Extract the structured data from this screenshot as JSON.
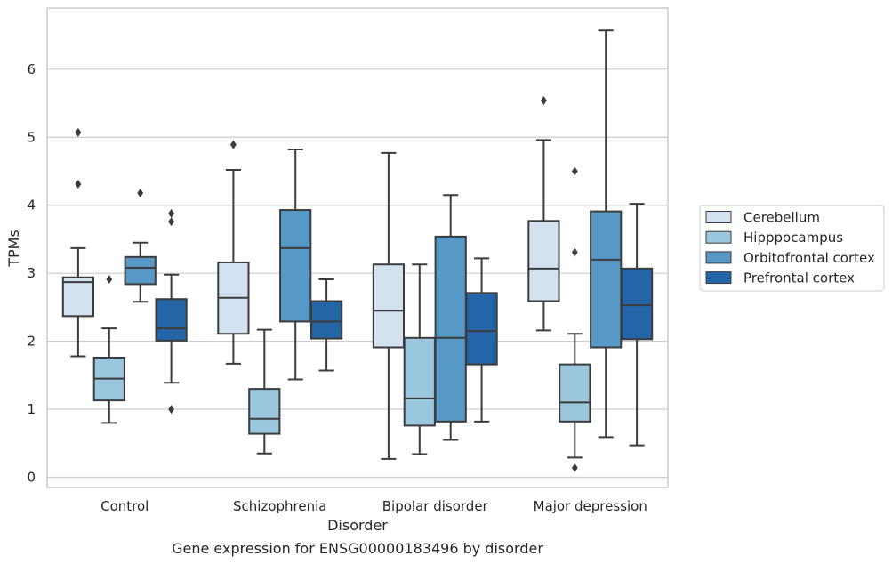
{
  "caption": "Gene expression for ENSG00000183496 by disorder",
  "chart_data": {
    "type": "box",
    "xlabel": "Disorder",
    "ylabel": "TPMs",
    "ylim": [
      -0.15,
      6.9
    ],
    "yticks": [
      0,
      1,
      2,
      3,
      4,
      5,
      6
    ],
    "grid": "horizontal",
    "legend_position": "right",
    "categories": [
      "Control",
      "Schizophrenia",
      "Bipolar disorder",
      "Major depression"
    ],
    "series": [
      {
        "name": "Cerebellum",
        "color": "#d2e2f1",
        "boxes": [
          {
            "whislo": 1.78,
            "q1": 2.37,
            "med": 2.87,
            "q3": 2.94,
            "whishi": 3.37,
            "fliers": [
              4.31,
              5.07
            ]
          },
          {
            "whislo": 1.67,
            "q1": 2.11,
            "med": 2.64,
            "q3": 3.16,
            "whishi": 4.52,
            "fliers": [
              4.89
            ]
          },
          {
            "whislo": 0.27,
            "q1": 1.91,
            "med": 2.45,
            "q3": 3.13,
            "whishi": 4.77,
            "fliers": []
          },
          {
            "whislo": 2.16,
            "q1": 2.59,
            "med": 3.07,
            "q3": 3.77,
            "whishi": 4.96,
            "fliers": [
              5.54
            ]
          }
        ]
      },
      {
        "name": "Hipppocampus",
        "color": "#9ac7de",
        "boxes": [
          {
            "whislo": 0.8,
            "q1": 1.13,
            "med": 1.45,
            "q3": 1.76,
            "whishi": 2.19,
            "fliers": [
              2.91
            ]
          },
          {
            "whislo": 0.35,
            "q1": 0.64,
            "med": 0.86,
            "q3": 1.3,
            "whishi": 2.17,
            "fliers": []
          },
          {
            "whislo": 0.34,
            "q1": 0.76,
            "med": 1.16,
            "q3": 2.05,
            "whishi": 3.13,
            "fliers": []
          },
          {
            "whislo": 0.29,
            "q1": 0.82,
            "med": 1.1,
            "q3": 1.66,
            "whishi": 2.11,
            "fliers": [
              0.14,
              3.31,
              4.5
            ]
          }
        ]
      },
      {
        "name": "Orbitofrontal cortex",
        "color": "#5799c6",
        "boxes": [
          {
            "whislo": 2.58,
            "q1": 2.84,
            "med": 3.08,
            "q3": 3.24,
            "whishi": 3.45,
            "fliers": [
              4.18
            ]
          },
          {
            "whislo": 1.44,
            "q1": 2.29,
            "med": 3.37,
            "q3": 3.93,
            "whishi": 4.82,
            "fliers": []
          },
          {
            "whislo": 0.55,
            "q1": 0.82,
            "med": 2.05,
            "q3": 3.54,
            "whishi": 4.15,
            "fliers": []
          },
          {
            "whislo": 0.59,
            "q1": 1.91,
            "med": 3.2,
            "q3": 3.91,
            "whishi": 6.57,
            "fliers": []
          }
        ]
      },
      {
        "name": "Prefrontal cortex",
        "color": "#2465a8",
        "boxes": [
          {
            "whislo": 1.39,
            "q1": 2.01,
            "med": 2.19,
            "q3": 2.62,
            "whishi": 2.98,
            "fliers": [
              1.0,
              3.76,
              3.88
            ]
          },
          {
            "whislo": 1.57,
            "q1": 2.04,
            "med": 2.29,
            "q3": 2.59,
            "whishi": 2.91,
            "fliers": []
          },
          {
            "whislo": 0.82,
            "q1": 1.66,
            "med": 2.15,
            "q3": 2.71,
            "whishi": 3.22,
            "fliers": []
          },
          {
            "whislo": 0.47,
            "q1": 2.03,
            "med": 2.53,
            "q3": 3.07,
            "whishi": 4.02,
            "fliers": []
          }
        ]
      }
    ]
  }
}
